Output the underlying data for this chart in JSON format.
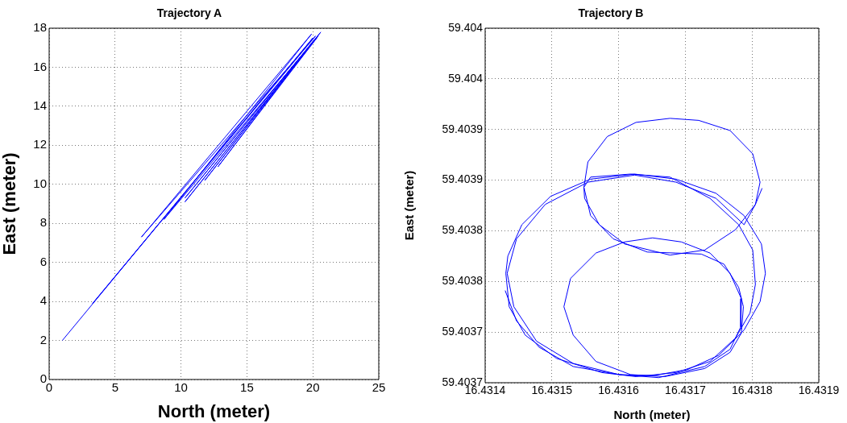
{
  "chart_data": [
    {
      "type": "line",
      "title": "Trajectory A",
      "xlabel": "North (meter)",
      "ylabel": "East (meter)",
      "xlim": [
        0,
        25
      ],
      "xticks": [
        0,
        5,
        10,
        15,
        20,
        25
      ],
      "ylim": [
        0,
        18
      ],
      "yticks": [
        0,
        2,
        4,
        6,
        8,
        10,
        12,
        14,
        16,
        18
      ],
      "grid": true,
      "marker": "none",
      "line_style": "solid",
      "series": [
        {
          "color": "#0000ff",
          "x": [
            1,
            20,
            3.3,
            20.2,
            7,
            19.9,
            8.7,
            20.4,
            10.3,
            20.6,
            10.3,
            20.1,
            11.8,
            20.3,
            12.8,
            20
          ],
          "values": [
            2,
            17.5,
            3.9,
            17.6,
            7.3,
            17.7,
            8.2,
            17.6,
            9.1,
            17.8,
            9.3,
            17.4,
            10.2,
            17.5,
            10.9,
            17.3
          ]
        }
      ]
    },
    {
      "type": "line",
      "title": "Trajectory B",
      "xlabel": "North (meter)",
      "ylabel": "East (meter)",
      "xlim": [
        16.4314,
        16.4319
      ],
      "xticks": [
        16.4314,
        16.4315,
        16.4316,
        16.4317,
        16.4318,
        16.4319
      ],
      "ylim": [
        59.40365,
        59.404
      ],
      "yticks": [
        {
          "value": 59.40365,
          "label": "59.4037"
        },
        {
          "value": 59.4037,
          "label": "59.4037"
        },
        {
          "value": 59.40375,
          "label": "59.4038"
        },
        {
          "value": 59.4038,
          "label": "59.4038"
        },
        {
          "value": 59.40385,
          "label": "59.4039"
        },
        {
          "value": 59.4039,
          "label": "59.4039"
        },
        {
          "value": 59.40395,
          "label": "59.404"
        },
        {
          "value": 59.404,
          "label": "59.404"
        }
      ],
      "grid": true,
      "marker": "none",
      "line_style": "solid",
      "series": [
        {
          "color": "#0000ff",
          "x": [
            16.43143,
            16.431447,
            16.431481,
            16.431532,
            16.431601,
            16.431652,
            16.431703,
            16.43175,
            16.431788,
            16.431812,
            16.43182,
            16.431814,
            16.431788,
            16.431746,
            16.431686,
            16.431624,
            16.431558,
            16.431498,
            16.431455,
            16.431434,
            16.431431,
            16.431436,
            16.43146,
            16.431507,
            16.431575,
            16.431626,
            16.431686,
            16.431737,
            16.431775,
            16.431797,
            16.431805,
            16.431801,
            16.43178,
            16.431737,
            16.431677,
            16.431618,
            16.431558,
            16.431548,
            16.431549,
            16.431571,
            16.431609,
            16.431677,
            16.431729,
            16.431775,
            16.431805,
            16.431812,
            16.431801,
            16.431767,
            16.43172,
            16.431677,
            16.431626,
            16.431583,
            16.431554,
            16.431548,
            16.431558,
            16.431592,
            16.431643,
            16.431686,
            16.431724,
            16.431758,
            16.43178,
            16.431787,
            16.431784,
            16.431767,
            16.431729,
            16.431669,
            16.431618,
            16.431566,
            16.431532,
            16.431518,
            16.431528,
            16.431566,
            16.431609,
            16.431651,
            16.431694,
            16.431737,
            16.431767,
            16.431784,
            16.431783,
            16.431767,
            16.431729,
            16.43166,
            16.431601,
            16.431532,
            16.431477,
            16.431443,
            16.431433,
            16.431447,
            16.43149,
            16.431554,
            16.431624,
            16.431686,
            16.431746,
            16.431788,
            16.431805,
            16.431815
          ],
          "values": [
            59.403741,
            59.403711,
            59.403685,
            59.403666,
            59.403658,
            59.403657,
            59.403663,
            59.403677,
            59.403702,
            59.40373,
            59.403758,
            59.403787,
            59.403815,
            59.403837,
            59.403851,
            59.403856,
            59.403851,
            59.403834,
            59.403806,
            59.403775,
            59.403758,
            59.403725,
            59.403697,
            59.403674,
            59.40366,
            59.403656,
            59.40366,
            59.403671,
            59.403694,
            59.403719,
            59.403747,
            59.403781,
            59.403806,
            59.403832,
            59.403853,
            59.403856,
            59.403853,
            59.403843,
            59.403832,
            59.403806,
            59.403787,
            59.403776,
            59.403781,
            59.403801,
            59.403826,
            59.403848,
            59.403876,
            59.403899,
            59.403909,
            59.403911,
            59.403907,
            59.403893,
            59.403868,
            59.403843,
            59.403815,
            59.403792,
            59.403779,
            59.403778,
            59.403777,
            59.403767,
            59.403744,
            59.403725,
            59.403699,
            59.40368,
            59.403664,
            59.403656,
            59.403658,
            59.403671,
            59.403697,
            59.403725,
            59.403753,
            59.403778,
            59.403789,
            59.403793,
            59.403789,
            59.403778,
            59.403758,
            59.403733,
            59.403705,
            59.403683,
            59.403666,
            59.403655,
            59.403658,
            59.403669,
            59.403691,
            59.403725,
            59.403758,
            59.403792,
            59.403826,
            59.403848,
            59.403855,
            59.403848,
            59.403832,
            59.403806,
            59.403826,
            59.403842
          ]
        }
      ]
    }
  ]
}
